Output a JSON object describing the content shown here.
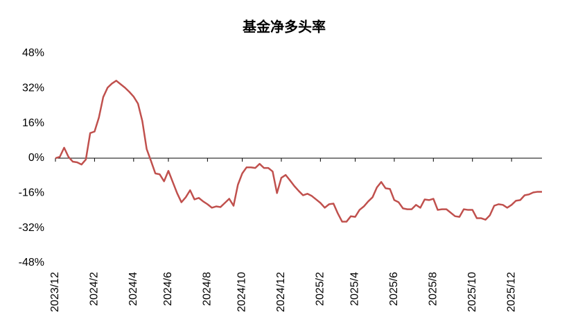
{
  "chart_data": {
    "type": "line",
    "title": "基金净多头率",
    "categories": [
      "2023/12",
      null,
      null,
      null,
      null,
      null,
      null,
      null,
      null,
      "2024/2",
      null,
      null,
      null,
      null,
      null,
      null,
      null,
      null,
      "2024/4",
      null,
      null,
      null,
      null,
      null,
      null,
      null,
      "2024/6",
      null,
      null,
      null,
      null,
      null,
      null,
      null,
      null,
      "2024/8",
      null,
      null,
      null,
      null,
      null,
      null,
      null,
      "2024/10",
      null,
      null,
      null,
      null,
      null,
      null,
      null,
      null,
      "2024/12",
      null,
      null,
      null,
      null,
      null,
      null,
      null,
      null,
      "2025/2",
      null,
      null,
      null,
      null,
      null,
      null,
      null,
      "2025/4",
      null,
      null,
      null,
      null,
      null,
      null,
      null,
      null,
      "2025/6",
      null,
      null,
      null,
      null,
      null,
      null,
      null,
      null,
      "2025/8",
      null,
      null,
      null,
      null,
      null,
      null,
      null,
      null,
      "2025/10",
      null,
      null,
      null,
      null,
      null,
      null,
      null,
      null,
      "2025/12",
      null,
      null,
      null,
      null,
      null,
      null,
      null
    ],
    "series": [
      {
        "color": "#c0504d",
        "values": [
          0,
          0.6,
          4.8,
          0.6,
          -1.6,
          -1.9,
          -2.9,
          -0.6,
          11.5,
          12.2,
          18.6,
          28,
          32.3,
          34.2,
          35.5,
          33.9,
          32.3,
          30.4,
          28.2,
          25,
          17,
          4.2,
          -1.3,
          -7,
          -7.4,
          -10.6,
          -5.8,
          -10.9,
          -16,
          -20.2,
          -17.9,
          -14.7,
          -18.9,
          -18.2,
          -19.8,
          -21.1,
          -22.7,
          -22.1,
          -22.4,
          -20.5,
          -18.6,
          -21.8,
          -12.2,
          -7,
          -4.2,
          -4.2,
          -4.5,
          -2.6,
          -4.5,
          -4.5,
          -6.1,
          -16,
          -9,
          -7.7,
          -10.2,
          -12.8,
          -15,
          -17,
          -16.3,
          -17.3,
          -18.9,
          -20.5,
          -22.7,
          -21.1,
          -20.8,
          -25.3,
          -29.1,
          -29.1,
          -26.6,
          -26.9,
          -23.7,
          -22.1,
          -19.8,
          -17.9,
          -13.4,
          -10.9,
          -13.8,
          -14.1,
          -19.2,
          -20.2,
          -23,
          -23.4,
          -23.4,
          -21.4,
          -22.7,
          -18.9,
          -19.2,
          -18.6,
          -23.7,
          -23.4,
          -23.4,
          -25,
          -26.6,
          -26.9,
          -23.4,
          -23.7,
          -23.7,
          -27.5,
          -27.5,
          -28.2,
          -26.2,
          -21.8,
          -21.1,
          -21.4,
          -22.7,
          -21.4,
          -19.5,
          -19.2,
          -17,
          -16.6,
          -15.7,
          -15.4,
          -15.4
        ]
      }
    ],
    "ylim": [
      -48,
      48
    ],
    "yticks": [
      {
        "value": -48,
        "label": "-48%"
      },
      {
        "value": -32,
        "label": "-32%"
      },
      {
        "value": -16,
        "label": "-16%"
      },
      {
        "value": 0,
        "label": "0%"
      },
      {
        "value": 16,
        "label": "16%"
      },
      {
        "value": 32,
        "label": "32%"
      },
      {
        "value": 48,
        "label": "48%"
      }
    ],
    "grid": false
  }
}
